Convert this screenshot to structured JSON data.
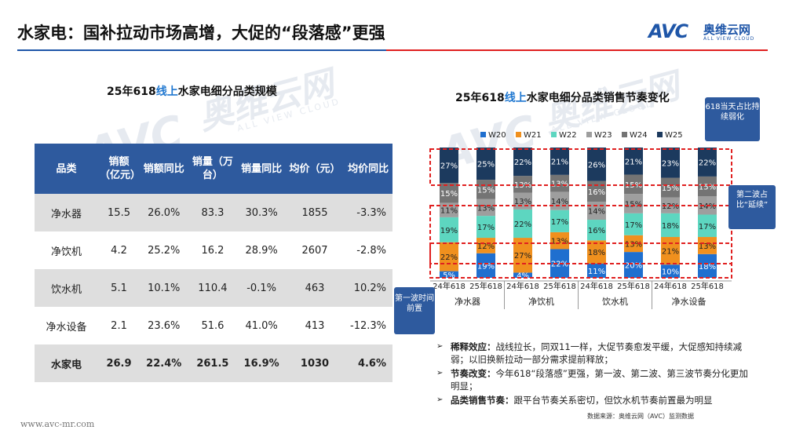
{
  "header": {
    "title": "水家电：国补拉动市场高增，大促的“段落感”更强",
    "logo_text": "AVC",
    "logo_cn": "奥维云网",
    "logo_en": "ALL VIEW CLOUD"
  },
  "watermark": {
    "cn": "奥维云网",
    "en": "ALL VIEW CLOUD",
    "logo": "AVC"
  },
  "left_panel": {
    "title_pre": "25年618",
    "title_hl": "线上",
    "title_post": "水家电细分品类规模",
    "columns": [
      "品类",
      "销额（亿元）",
      "销额同比",
      "销量（万台）",
      "销量同比",
      "均价（元）",
      "均价同比"
    ],
    "rows": [
      [
        "净水器",
        "15.5",
        "26.0%",
        "83.3",
        "30.3%",
        "1855",
        "-3.3%"
      ],
      [
        "净饮机",
        "4.2",
        "25.2%",
        "16.2",
        "28.9%",
        "2607",
        "-2.8%"
      ],
      [
        "饮水机",
        "5.1",
        "10.1%",
        "110.4",
        "-0.1%",
        "463",
        "10.2%"
      ],
      [
        "净水设备",
        "2.1",
        "23.6%",
        "51.6",
        "41.0%",
        "413",
        "-12.3%"
      ],
      [
        "水家电",
        "26.9",
        "22.4%",
        "261.5",
        "16.9%",
        "1030",
        "4.6%"
      ]
    ]
  },
  "right_panel": {
    "title_pre": "25年618",
    "title_hl": "线上",
    "title_post": "水家电细分品类销售节奏变化",
    "callouts": {
      "c618": "618当天占比持续弱化",
      "wave2": "第二波占比“延续”",
      "wave1": "第一波时间前置"
    },
    "bullets": [
      {
        "label": "稀释效应：",
        "text": "战线拉长，同双11一样，大促节奏愈发平缓，大促感知持续减弱；以旧换新拉动一部分需求提前释放；"
      },
      {
        "label": "节奏改变：",
        "text": "今年618“段落感”更强，第一波、第二波、第三波节奏分化更加明显；"
      },
      {
        "label": "品类销售节奏：",
        "text": "跟平台节奏关系密切，但饮水机节奏前置最为明显"
      }
    ],
    "source": "数据来源：奥维云网（AVC）监测数据"
  },
  "chart_data": {
    "type": "bar",
    "stacked": true,
    "percent": true,
    "categories": [
      "24年618",
      "25年618",
      "24年618",
      "25年618",
      "24年618",
      "25年618",
      "24年618",
      "25年618"
    ],
    "groups": [
      "净水器",
      "净饮机",
      "饮水机",
      "净水设备"
    ],
    "legend_position": "top",
    "series": [
      {
        "name": "W20",
        "color": "#1f6fcf",
        "values": [
          5,
          19,
          4,
          22,
          11,
          20,
          10,
          18
        ]
      },
      {
        "name": "W21",
        "color": "#f0901e",
        "values": [
          22,
          12,
          27,
          13,
          18,
          13,
          21,
          13
        ]
      },
      {
        "name": "W22",
        "color": "#5dd6c0",
        "values": [
          19,
          17,
          22,
          17,
          16,
          17,
          18,
          17
        ]
      },
      {
        "name": "W23",
        "color": "#9e9e9e",
        "values": [
          11,
          13,
          13,
          14,
          14,
          15,
          12,
          14
        ]
      },
      {
        "name": "W24",
        "color": "#747474",
        "values": [
          15,
          15,
          13,
          13,
          16,
          15,
          15,
          15
        ]
      },
      {
        "name": "W25",
        "color": "#1c3a5e",
        "values": [
          27,
          25,
          22,
          21,
          26,
          21,
          23,
          22
        ]
      }
    ]
  },
  "footer": {
    "site": "www.avc-mr.com"
  }
}
